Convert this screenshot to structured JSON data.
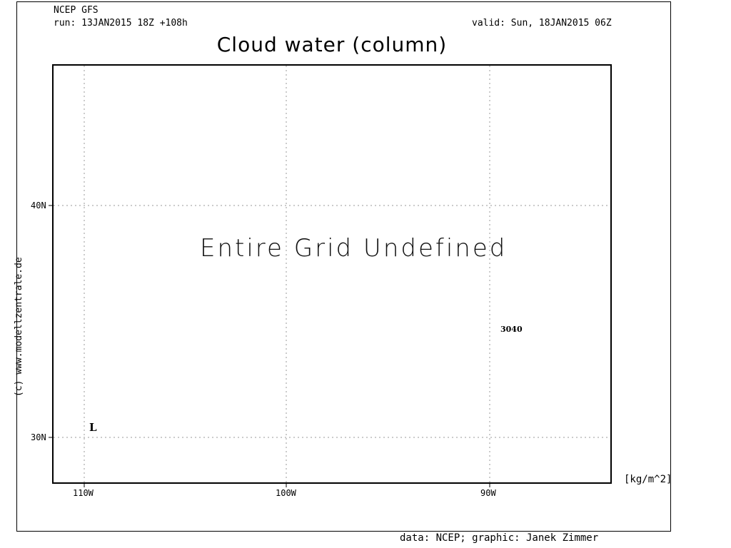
{
  "header": {
    "model": "NCEP GFS",
    "run": "run: 13JAN2015 18Z +108h",
    "valid": "valid: Sun, 18JAN2015 06Z"
  },
  "map": {
    "title": "Cloud water (column)",
    "message": "Entire Grid Undefined",
    "lat_labels": [
      "40N",
      "30N"
    ],
    "lon_labels": [
      "110W",
      "100W",
      "90W"
    ],
    "pressure_label": "L",
    "contour_label": "3040",
    "units": "[kg/m^2]",
    "gridlines": true
  },
  "credits": {
    "watermark": "(c) www.modellzentrale.de",
    "source": "data: NCEP; graphic: Janek Zimmer"
  }
}
